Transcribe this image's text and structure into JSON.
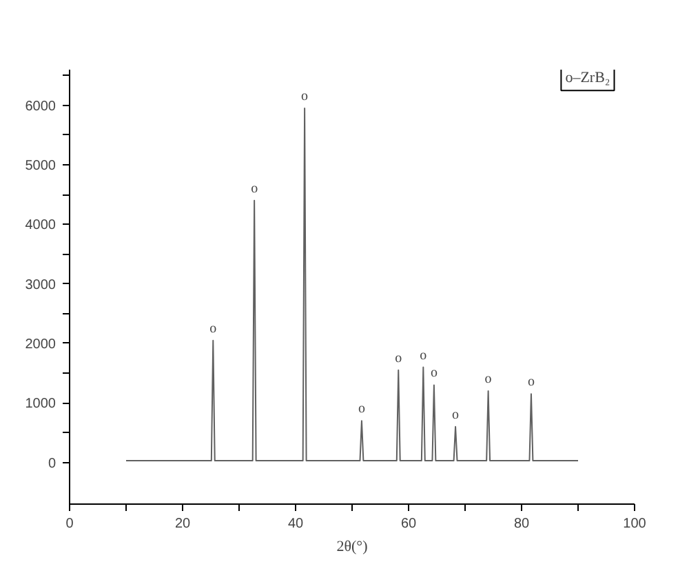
{
  "chart_data": {
    "type": "line",
    "xlabel": "2θ(°)",
    "x": [
      10,
      25.1,
      25.4,
      25.7,
      32.4,
      32.7,
      33.0,
      41.3,
      41.6,
      41.9,
      51.4,
      51.7,
      52.0,
      57.9,
      58.2,
      58.5,
      62.3,
      62.6,
      62.9,
      64.2,
      64.5,
      64.8,
      68.0,
      68.3,
      68.6,
      73.8,
      74.1,
      74.4,
      81.4,
      81.7,
      82.0,
      90
    ],
    "series": [
      {
        "color": "#606060",
        "values": [
          30,
          30,
          2050,
          30,
          30,
          4400,
          30,
          30,
          5950,
          30,
          30,
          700,
          30,
          30,
          1550,
          30,
          30,
          1600,
          30,
          30,
          1300,
          30,
          30,
          600,
          30,
          30,
          1200,
          30,
          30,
          1150,
          30,
          30
        ]
      }
    ],
    "xlim": [
      0,
      100
    ],
    "ylim": [
      -700,
      6600
    ],
    "xticks": [
      0,
      {
        "value": 10,
        "label": null
      },
      20,
      {
        "value": 30,
        "label": null
      },
      40,
      {
        "value": 50,
        "label": null
      },
      60,
      {
        "value": 70,
        "label": null
      },
      80,
      {
        "value": 90,
        "label": null
      },
      100
    ],
    "yticks": [
      0,
      {
        "value": 500,
        "label": null
      },
      1000,
      {
        "value": 1500,
        "label": null
      },
      2000,
      {
        "value": 2500,
        "label": null
      },
      3000,
      {
        "value": 3500,
        "label": null
      },
      4000,
      {
        "value": 4500,
        "label": null
      },
      5000,
      {
        "value": 5500,
        "label": null
      },
      6000,
      {
        "value": 6500,
        "label": null
      }
    ],
    "grid": false,
    "marker": "none",
    "line_style": "solid",
    "annotations": [
      "o–ZrB₂",
      {
        "text": "o",
        "x": 25.4,
        "y": 2050
      },
      {
        "text": "o",
        "x": 32.7,
        "y": 4400
      },
      {
        "text": "o",
        "x": 41.6,
        "y": 5950
      },
      {
        "text": "o",
        "x": 51.7,
        "y": 700
      },
      {
        "text": "o",
        "x": 58.2,
        "y": 1550
      },
      {
        "text": "o",
        "x": 62.6,
        "y": 1600
      },
      {
        "text": "o",
        "x": 64.5,
        "y": 1300
      },
      {
        "text": "o",
        "x": 68.3,
        "y": 600
      },
      {
        "text": "o",
        "x": 74.1,
        "y": 1200
      },
      {
        "text": "o",
        "x": 81.7,
        "y": 1150
      }
    ]
  }
}
